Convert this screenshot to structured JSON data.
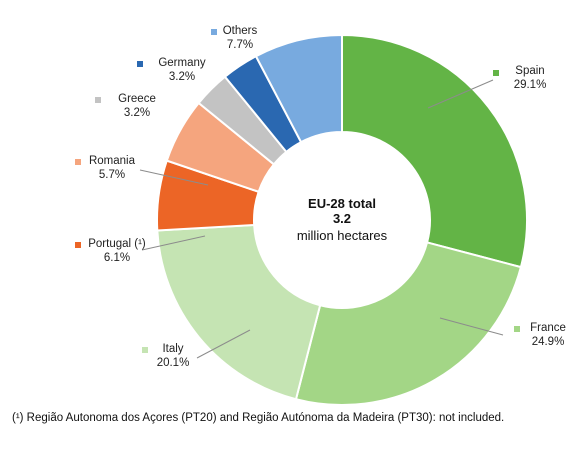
{
  "chart_data": {
    "type": "pie",
    "donut": true,
    "center": {
      "title": "EU-28 total",
      "value": "3.2",
      "unit": "million hectares"
    },
    "slices": [
      {
        "label": "Spain",
        "value_label": "29.1%",
        "value": 29.1,
        "color": "#63b446"
      },
      {
        "label": "France",
        "value_label": "24.9%",
        "value": 24.9,
        "color": "#a3d686"
      },
      {
        "label": "Italy",
        "value_label": "20.1%",
        "value": 20.1,
        "color": "#c5e4b3"
      },
      {
        "label": "Portugal (¹)",
        "value_label": "6.1%",
        "value": 6.1,
        "color": "#ec6526"
      },
      {
        "label": "Romania",
        "value_label": "5.7%",
        "value": 5.7,
        "color": "#f5a57e"
      },
      {
        "label": "Greece",
        "value_label": "3.2%",
        "value": 3.2,
        "color": "#c3c3c3"
      },
      {
        "label": "Germany",
        "value_label": "3.2%",
        "value": 3.2,
        "color": "#2a68b1"
      },
      {
        "label": "Others",
        "value_label": "7.7%",
        "value": 7.7,
        "color": "#78aadf"
      }
    ],
    "legend_placement": "labels around chart"
  },
  "footnote": "(¹) Região Autonoma dos Açores (PT20) and Região Autónoma da Madeira (PT30): not included."
}
